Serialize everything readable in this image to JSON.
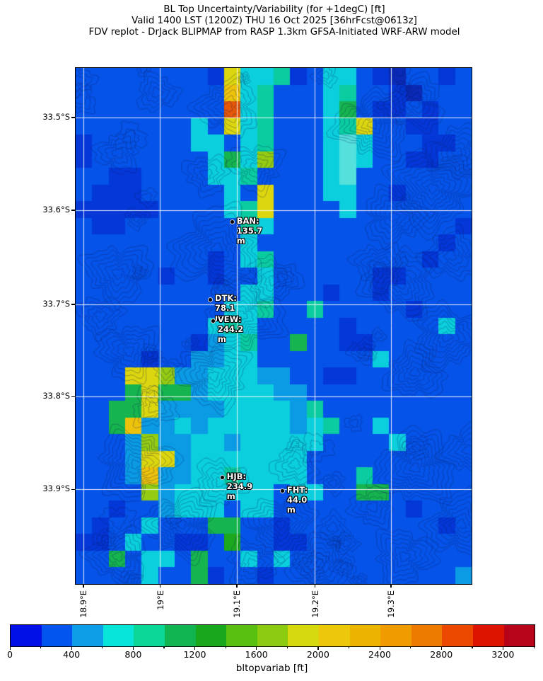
{
  "chart_data": {
    "type": "heatmap",
    "title": "BL Top Uncertainty/Variability (for +1degC) [ft]",
    "subtitle": "Valid 1400 LST (1200Z) THU 16 Oct 2025 [36hrFcst@0613z]",
    "source_line": "FDV replot - DrJack BLIPMAP from RASP 1.3km GFSA-Initiated WRF-ARW model",
    "grid_on": true,
    "x_axis": {
      "ticks": [
        {
          "label": "18.9°E",
          "f": 0.0196
        },
        {
          "label": "19°E",
          "f": 0.2125
        },
        {
          "label": "19.1°E",
          "f": 0.4071
        },
        {
          "label": "19.2°E",
          "f": 0.6036
        },
        {
          "label": "19.3°E",
          "f": 0.7964
        }
      ]
    },
    "y_axis": {
      "ticks": [
        {
          "label": "33.5°S",
          "f": 0.096
        },
        {
          "label": "33.6°S",
          "f": 0.2757
        },
        {
          "label": "33.7°S",
          "f": 0.4581
        },
        {
          "label": "33.8°S",
          "f": 0.6365
        },
        {
          "label": "33.9°S",
          "f": 0.8162
        }
      ]
    },
    "colorbar": {
      "label": "bltopvariab [ft]",
      "min": 0,
      "max": 3400,
      "segment_step": 200,
      "major_ticks": [
        0,
        400,
        800,
        1200,
        1600,
        2000,
        2400,
        2800,
        3200
      ],
      "minor_step": 200,
      "colors": [
        "#0010e6",
        "#0455f0",
        "#0c9fe8",
        "#06e5d8",
        "#0bd898",
        "#10b450",
        "#18a81c",
        "#58be10",
        "#8ccc10",
        "#d6d90e",
        "#edc80a",
        "#eab400",
        "#f09c00",
        "#ee7a00",
        "#ec4800",
        "#dc1400",
        "#b8041a"
      ]
    },
    "stations": [
      {
        "id": "BAN",
        "label": "BAN: 135.7 m",
        "value_m": 135.7,
        "fx": 0.396,
        "fy": 0.299
      },
      {
        "id": "DTK",
        "label": "DTK: 78.1 m",
        "value_m": 78.1,
        "fx": 0.341,
        "fy": 0.449
      },
      {
        "id": "VEW",
        "label": "VEW: 244.2 m",
        "value_m": 244.2,
        "fx": 0.348,
        "fy": 0.49
      },
      {
        "id": "HJB",
        "label": "HJB: 234.9 m",
        "value_m": 234.9,
        "fx": 0.371,
        "fy": 0.794
      },
      {
        "id": "FHT",
        "label": "FHT: 44.0 m",
        "value_m": 44.0,
        "fx": 0.523,
        "fy": 0.82
      }
    ],
    "grid": {
      "cols": 24,
      "rows": 31,
      "palette": {
        "a": "#0a2ab8",
        "d": "#0437d8",
        "b": "#0553e8",
        "s": "#0b9ae4",
        "c": "#0bcfdc",
        "C": "#55e0dc",
        "t": "#0acca0",
        "g": "#16b44e",
        "G": "#1ca81e",
        "y": "#94cc12",
        "Y": "#dcd60e",
        "o": "#edc20a",
        "r": "#e65708"
      },
      "rows_data": [
        "bbbbbbbbdYcctdbccbdabbdb",
        "bbbbbbbbboctbbbctbbdabbb",
        "bbbbbbbbbrctbbbcgbddbdbb",
        "bbbbbbbcbYctbbbctYbbddbb",
        "dbbbbbbccbctbbbcCcbbbddb",
        "dbbbbbbbcgcybbbcCcbbddbb",
        "bbddbbbbcctbbbbcCbbbbbbb",
        "bdddbbbbbcbYbbbccbbdbbbb",
        "dddddbbbbctYbbbbcbbbbbbb",
        "bddbbbbbbbtcbbbbbbbbbbbd",
        "bbbbbbbbbbcbbbbbbbbbbbdb",
        "bbbbbbbbdbctbbbbbbbbbdbb",
        "bbbbbdbbdbbcbbbbbbddbbbb",
        "bbbbbbbbbbccbbbdbbdbbbbb",
        "bbbbbbbbbcctbbtbbbbbdbbb",
        "bbbbbbbbctcbbbbbdbbbbbcb",
        "bbbbbbbdsctbbgbbddbbbbbb",
        "bbbbdbbssccbbbbbbbcbbbbb",
        "bbbYYysscccssbbddbbbbbbb",
        "bbbgYggsccccssbbbbbbbbbb",
        "bbggYssssccccstbbbbbbbbb",
        "bbgosscscccccsctbbcbbbbb",
        "bbbsyssccscccccbbbbcbbbb",
        "bbbsYYscccccccbbbbbbbbbb",
        "bbbsosscctccccbbbtbbbbbb",
        "bbbbysccccccbccbbggbbbbb",
        "bbdbbscccbccbbbbbbbbdbbb",
        "bdbbcbbbggbbdbbbbbbbbbdb",
        "ddbcbbddbGbbddbbbbbbbbbb",
        "bbgbccbgbbcbcbbbbbbbbbbb",
        "bbbbcbbgdbbdbbbbbbbbbbbs"
      ]
    },
    "gridline_color": "#ffffff",
    "contour_color": "#08185a"
  }
}
